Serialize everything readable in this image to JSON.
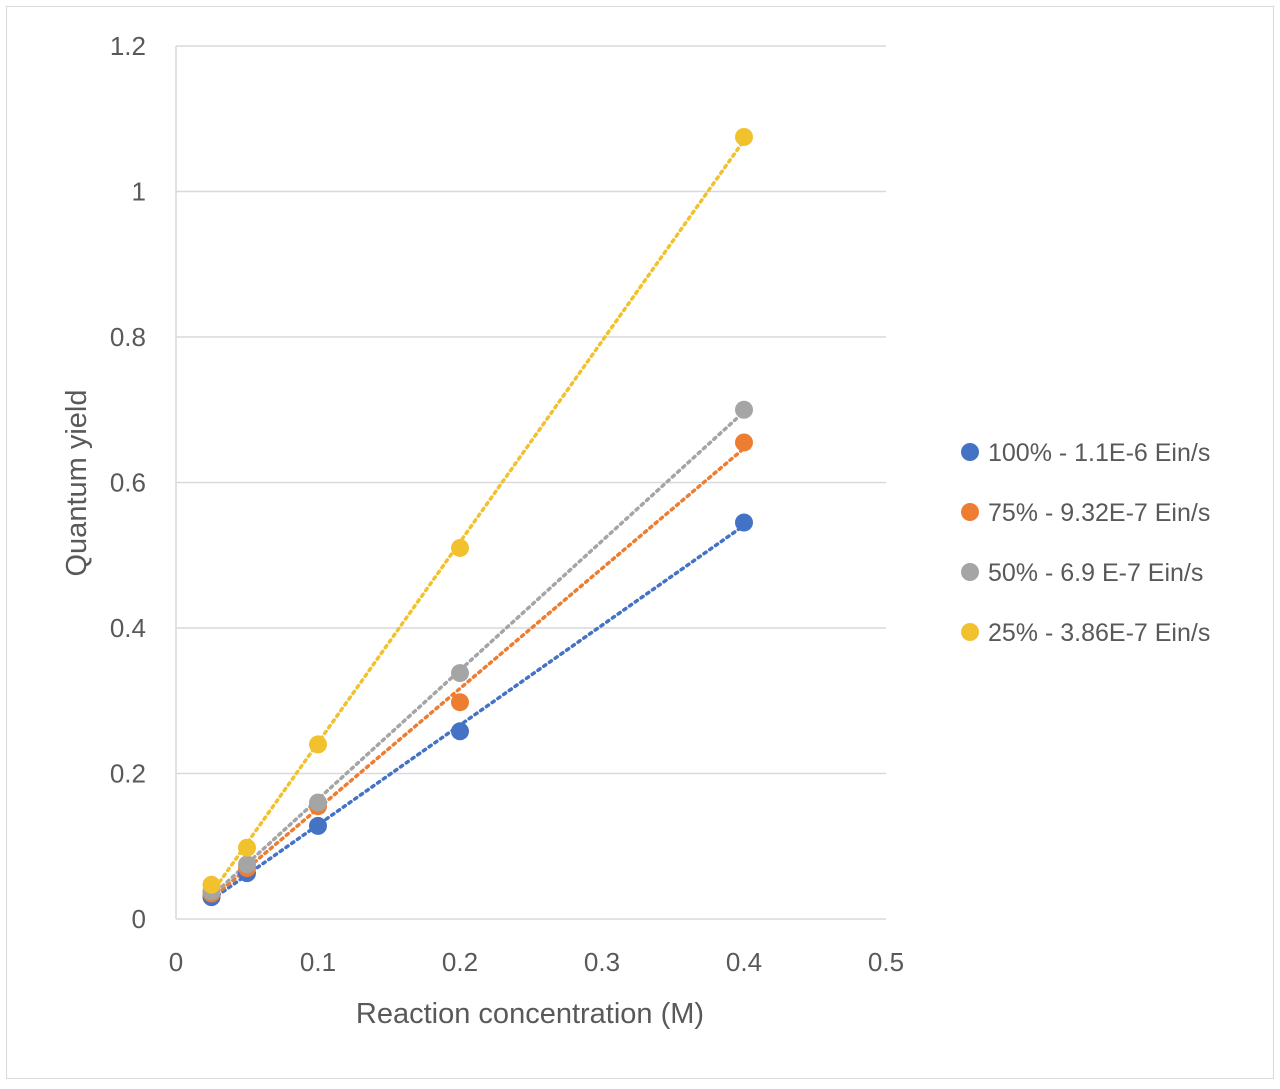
{
  "chart_data": {
    "type": "scatter",
    "title": "",
    "xlabel": "Reaction concentration (M)",
    "ylabel": "Quantum yield",
    "xlim": [
      0,
      0.5
    ],
    "ylim": [
      0,
      1.2
    ],
    "x_ticks": [
      "0",
      "0.1",
      "0.2",
      "0.3",
      "0.4",
      "0.5"
    ],
    "y_ticks": [
      "0",
      "0.2",
      "0.4",
      "0.6",
      "0.8",
      "1",
      "1.2"
    ],
    "grid": "horizontal",
    "legend_position": "right",
    "trendlines": "linear, dotted",
    "series": [
      {
        "name": "100% - 1.1E-6 Ein/s",
        "color": "#4472C4",
        "x": [
          0.025,
          0.05,
          0.1,
          0.2,
          0.4
        ],
        "y": [
          0.03,
          0.063,
          0.128,
          0.258,
          0.545
        ]
      },
      {
        "name": "75% - 9.32E-7 Ein/s",
        "color": "#ED7D31",
        "x": [
          0.025,
          0.05,
          0.1,
          0.2,
          0.4
        ],
        "y": [
          0.035,
          0.07,
          0.155,
          0.298,
          0.655
        ]
      },
      {
        "name": "50% - 6.9 E-7 Ein/s",
        "color": "#A5A5A5",
        "x": [
          0.025,
          0.05,
          0.1,
          0.2,
          0.4
        ],
        "y": [
          0.038,
          0.075,
          0.16,
          0.338,
          0.7
        ]
      },
      {
        "name": "25% - 3.86E-7 Ein/s",
        "color": "#F2C12E",
        "x": [
          0.025,
          0.05,
          0.1,
          0.2,
          0.4
        ],
        "y": [
          0.047,
          0.098,
          0.24,
          0.51,
          1.075
        ]
      }
    ]
  }
}
